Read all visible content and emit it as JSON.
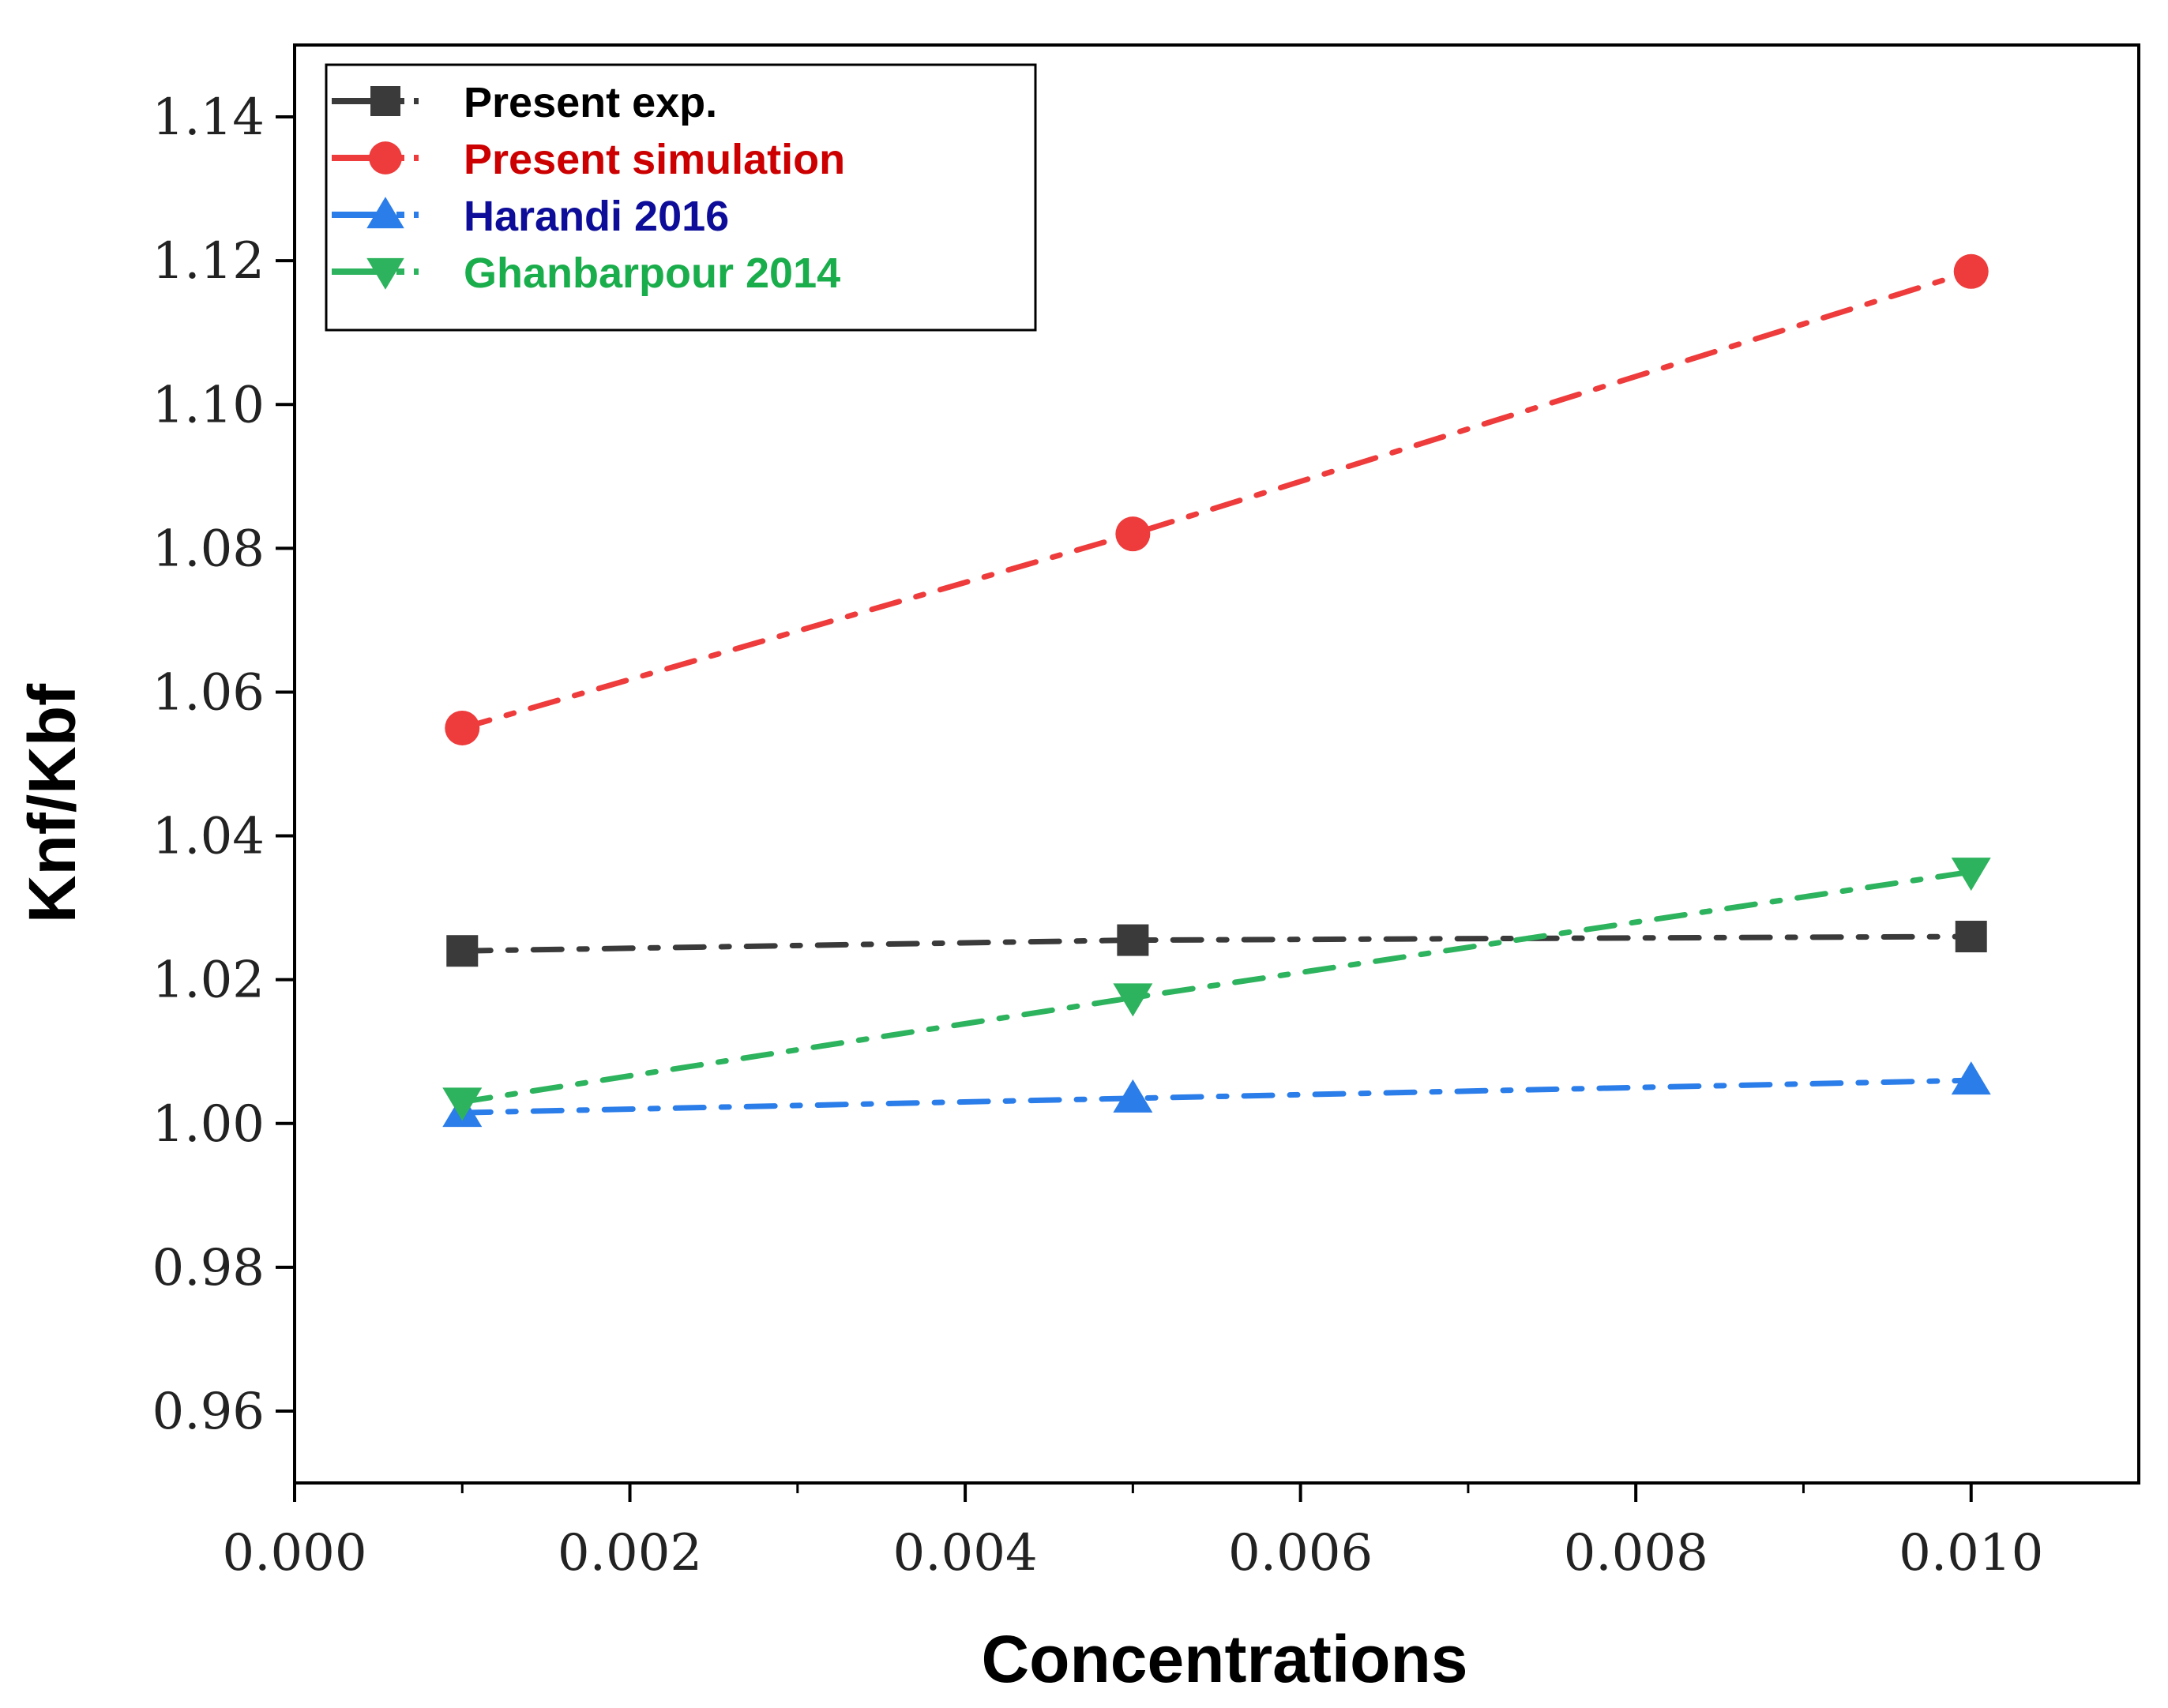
{
  "chart_data": {
    "type": "line",
    "title": "",
    "xlabel": "Concentrations",
    "ylabel": "Knf/Kbf",
    "xlim": [
      0.0,
      0.011
    ],
    "ylim": [
      0.95,
      1.15
    ],
    "xticks": [
      0.0,
      0.002,
      0.004,
      0.006,
      0.008,
      0.01
    ],
    "xtick_labels": [
      "0.000",
      "0.002",
      "0.004",
      "0.006",
      "0.008",
      "0.010"
    ],
    "yticks": [
      0.96,
      0.98,
      1.0,
      1.02,
      1.04,
      1.06,
      1.08,
      1.1,
      1.12,
      1.14
    ],
    "ytick_labels": [
      "0.96",
      "0.98",
      "1.00",
      "1.02",
      "1.04",
      "1.06",
      "1.08",
      "1.10",
      "1.12",
      "1.14"
    ],
    "grid": false,
    "legend_position": "top-left",
    "series": [
      {
        "name": "Present exp.",
        "color": "#3a3a3a",
        "text_color": "#000000",
        "marker": "square",
        "x": [
          0.001,
          0.005,
          0.01
        ],
        "y": [
          1.024,
          1.0255,
          1.026
        ]
      },
      {
        "name": "Present simulation",
        "color": "#ee3b3b",
        "text_color": "#cc0000",
        "marker": "circle",
        "x": [
          0.001,
          0.005,
          0.01
        ],
        "y": [
          1.055,
          1.082,
          1.1185
        ]
      },
      {
        "name": "Harandi 2016",
        "color": "#2b7de9",
        "text_color": "#0d0d99",
        "marker": "triangle-up",
        "x": [
          0.001,
          0.005,
          0.01
        ],
        "y": [
          1.0015,
          1.0035,
          1.006
        ]
      },
      {
        "name": "Ghanbarpour 2014",
        "color": "#2db35d",
        "text_color": "#1aad4b",
        "marker": "triangle-down",
        "x": [
          0.001,
          0.005,
          0.01
        ],
        "y": [
          1.003,
          1.0175,
          1.035
        ]
      }
    ]
  }
}
